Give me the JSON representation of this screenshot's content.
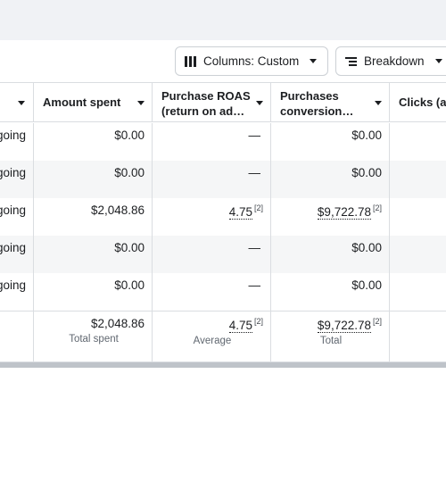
{
  "toolbar": {
    "columns_label": "Columns: Custom",
    "breakdown_label": "Breakdown"
  },
  "table": {
    "headers": [
      {
        "line1": "",
        "line2": ""
      },
      {
        "line1": "Amount spent",
        "line2": ""
      },
      {
        "line1": "Purchase ROAS",
        "line2": "(return on ad…"
      },
      {
        "line1": "Purchases",
        "line2": "conversion…"
      },
      {
        "line1": "Clicks (al",
        "line2": ""
      }
    ],
    "rows": [
      {
        "status": "going",
        "amount_spent": "$0.00",
        "roas": "—",
        "roas_note": "",
        "purchases_value": "$0.00",
        "purchases_note": ""
      },
      {
        "status": "going",
        "amount_spent": "$0.00",
        "roas": "—",
        "roas_note": "",
        "purchases_value": "$0.00",
        "purchases_note": ""
      },
      {
        "status": "going",
        "amount_spent": "$2,048.86",
        "roas": "4.75",
        "roas_note": "[2]",
        "purchases_value": "$9,722.78",
        "purchases_note": "[2]"
      },
      {
        "status": "going",
        "amount_spent": "$0.00",
        "roas": "—",
        "roas_note": "",
        "purchases_value": "$0.00",
        "purchases_note": ""
      },
      {
        "status": "going",
        "amount_spent": "$0.00",
        "roas": "—",
        "roas_note": "",
        "purchases_value": "$0.00",
        "purchases_note": ""
      }
    ],
    "totals": {
      "amount_spent": "$2,048.86",
      "amount_spent_caption": "Total spent",
      "roas": "4.75",
      "roas_note": "[2]",
      "roas_caption": "Average",
      "purchases_value": "$9,722.78",
      "purchases_note": "[2]",
      "purchases_caption": "Total"
    }
  },
  "icons": {
    "columns": "columns-icon",
    "breakdown": "breakdown-icon",
    "sort": "caret-down-icon"
  },
  "colors": {
    "page_background": "#f0f2f5",
    "row_alt": "#f5f6f7",
    "border": "#dadde1",
    "scrollbar": "#bec3c9"
  }
}
